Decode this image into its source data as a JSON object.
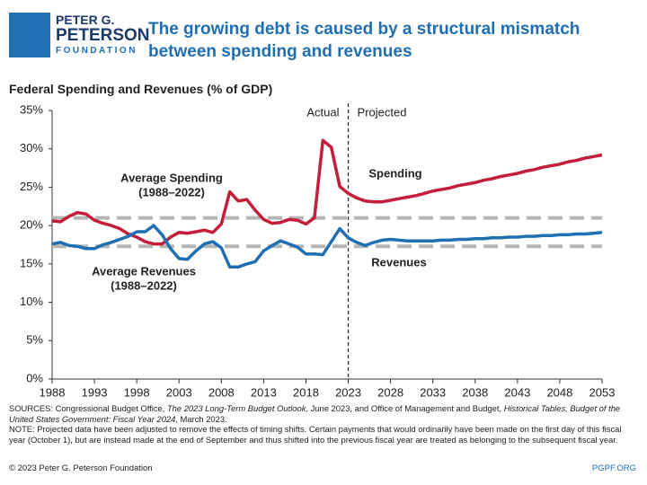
{
  "logo": [
    "PETER G.",
    "PETERSON",
    "FOUNDATION"
  ],
  "chart_data": {
    "type": "line",
    "title": "The growing debt is caused by a structural mismatch between spending and revenues",
    "subtitle": "Federal Spending and Revenues (% of GDP)",
    "x": [
      1988,
      1989,
      1990,
      1991,
      1992,
      1993,
      1994,
      1995,
      1996,
      1997,
      1998,
      1999,
      2000,
      2001,
      2002,
      2003,
      2004,
      2005,
      2006,
      2007,
      2008,
      2009,
      2010,
      2011,
      2012,
      2013,
      2014,
      2015,
      2016,
      2017,
      2018,
      2019,
      2020,
      2021,
      2022,
      2023,
      2024,
      2025,
      2026,
      2027,
      2028,
      2029,
      2030,
      2031,
      2032,
      2033,
      2034,
      2035,
      2036,
      2037,
      2038,
      2039,
      2040,
      2041,
      2042,
      2043,
      2044,
      2045,
      2046,
      2047,
      2048,
      2049,
      2050,
      2051,
      2052,
      2053
    ],
    "series": [
      {
        "name": "Spending",
        "color": "#c41e3a",
        "values": [
          20.6,
          20.5,
          21.2,
          21.7,
          21.5,
          20.7,
          20.3,
          20.0,
          19.6,
          18.9,
          18.5,
          17.9,
          17.6,
          17.6,
          18.5,
          19.1,
          19.0,
          19.2,
          19.4,
          19.1,
          20.2,
          24.4,
          23.2,
          23.4,
          22.0,
          20.8,
          20.3,
          20.4,
          20.8,
          20.7,
          20.2,
          21.0,
          31.1,
          30.2,
          25.1,
          24.2,
          23.6,
          23.2,
          23.1,
          23.1,
          23.3,
          23.5,
          23.7,
          23.9,
          24.2,
          24.5,
          24.7,
          24.9,
          25.2,
          25.4,
          25.6,
          25.9,
          26.1,
          26.4,
          26.6,
          26.8,
          27.1,
          27.3,
          27.6,
          27.8,
          28.0,
          28.3,
          28.5,
          28.8,
          29.0,
          29.2
        ]
      },
      {
        "name": "Revenues",
        "color": "#1f6fb2",
        "values": [
          17.6,
          17.8,
          17.4,
          17.3,
          17.0,
          17.0,
          17.5,
          17.8,
          18.2,
          18.6,
          19.2,
          19.2,
          20.0,
          18.8,
          17.0,
          15.7,
          15.6,
          16.7,
          17.6,
          17.9,
          17.1,
          14.6,
          14.6,
          15.0,
          15.3,
          16.7,
          17.4,
          18.0,
          17.6,
          17.2,
          16.3,
          16.3,
          16.2,
          17.9,
          19.6,
          18.4,
          17.8,
          17.4,
          17.8,
          18.1,
          18.2,
          18.1,
          18.0,
          18.0,
          18.0,
          18.0,
          18.1,
          18.1,
          18.2,
          18.2,
          18.3,
          18.3,
          18.4,
          18.4,
          18.5,
          18.5,
          18.6,
          18.6,
          18.7,
          18.7,
          18.8,
          18.8,
          18.9,
          18.9,
          19.0,
          19.1
        ]
      }
    ],
    "reference_lines": [
      {
        "label": [
          "Average Spending",
          "(1988–2022)"
        ],
        "value": 21.0
      },
      {
        "label": [
          "Average Revenues",
          "(1988–2022)"
        ],
        "value": 17.3
      }
    ],
    "divider": {
      "x": 2023,
      "labels": [
        "Actual",
        "Projected"
      ]
    },
    "xlim": [
      1988,
      2053
    ],
    "xticks": [
      1988,
      1993,
      1998,
      2003,
      2008,
      2013,
      2018,
      2023,
      2028,
      2033,
      2038,
      2043,
      2048,
      2053
    ],
    "ylim": [
      0,
      35
    ],
    "yticks": [
      {
        "value": 0,
        "label": "0%"
      },
      {
        "value": 5,
        "label": "5%"
      },
      {
        "value": 10,
        "label": "10%"
      },
      {
        "value": 15,
        "label": "15%"
      },
      {
        "value": 20,
        "label": "20%"
      },
      {
        "value": 25,
        "label": "25%"
      },
      {
        "value": 30,
        "label": "30%"
      },
      {
        "value": 35,
        "label": "35%"
      }
    ],
    "sources": [
      {
        "text": "SOURCES: Congressional Budget Office, ",
        "italic": false
      },
      {
        "text": "The 2023 Long-Term Budget Outlook",
        "italic": true
      },
      {
        "text": ", June 2023, and Office of Management and Budget, ",
        "italic": false
      },
      {
        "text": "Historical Tables, Budget of the United States Government: Fiscal Year 2024",
        "italic": true
      },
      {
        "text": ", March 2023.",
        "italic": false
      }
    ],
    "note": "NOTE: Projected data have been adjusted to remove the effects of timing shifts. Certain payments that would ordinarily have been made on the first day of this fiscal year (October 1), but are instead made at the end of September and thus shifted into the previous fiscal year are treated as belonging to the subsequent fiscal year.",
    "copyright": "© 2023 Peter G. Peterson Foundation",
    "website": "PGPF.ORG"
  }
}
